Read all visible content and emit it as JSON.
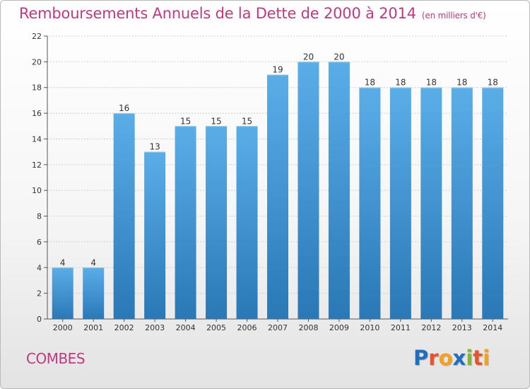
{
  "header": {
    "title": "Remboursements Annuels de la Dette de 2000 à 2014",
    "unit": "(en milliers d'€)"
  },
  "footer": {
    "commune": "COMBES",
    "logo": {
      "letters": [
        "P",
        "r",
        "o",
        "x",
        "i",
        "t",
        "i"
      ],
      "colors": [
        "#1e6fbf",
        "#e8542a",
        "#f4a21c",
        "#1e6fbf",
        "#7db832",
        "#e8542a",
        "#f4a21c"
      ]
    }
  },
  "colors": {
    "title": "#c0397d",
    "bar_top": "#5aaee8",
    "bar_bottom": "#2a78b6",
    "grid": "#cfcfcf",
    "axis": "#555555",
    "text": "#333333"
  },
  "chart_data": {
    "type": "bar",
    "title": "Remboursements Annuels de la Dette de 2000 à 2014",
    "subtitle": "(en milliers d'€)",
    "xlabel": "",
    "ylabel": "",
    "categories": [
      "2000",
      "2001",
      "2002",
      "2003",
      "2004",
      "2005",
      "2006",
      "2007",
      "2008",
      "2009",
      "2010",
      "2011",
      "2012",
      "2013",
      "2014"
    ],
    "values": [
      4,
      4,
      16,
      13,
      15,
      15,
      15,
      19,
      20,
      20,
      18,
      18,
      18,
      18,
      18
    ],
    "ylim": [
      0,
      22
    ],
    "yticks": [
      0,
      2,
      4,
      6,
      8,
      10,
      12,
      14,
      16,
      18,
      20,
      22
    ],
    "grid": true,
    "legend": "none"
  }
}
